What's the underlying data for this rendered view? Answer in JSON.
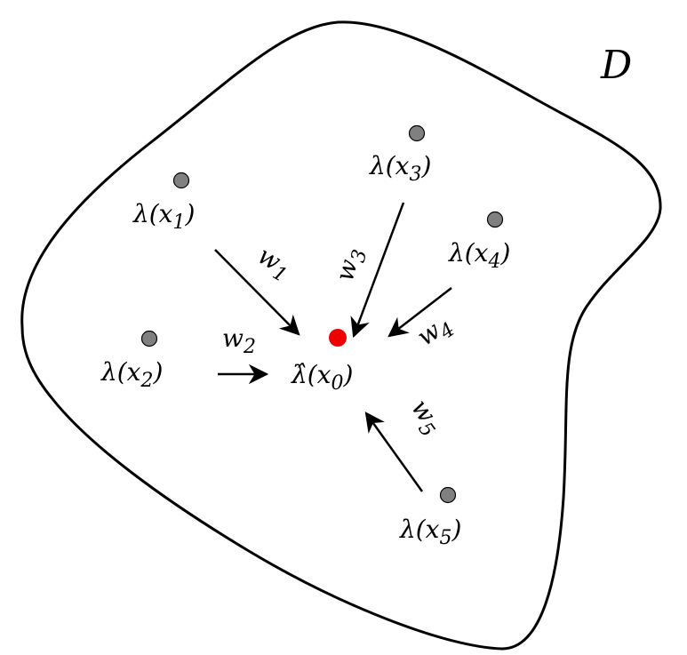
{
  "domain_label": "D",
  "target": {
    "label_base": "λ̂(x",
    "label_sub": "0",
    "label_close": ")",
    "color": "#ee0000"
  },
  "samples": [
    {
      "label_base": "λ(x",
      "label_sub": "1",
      "label_close": ")",
      "weight": "w",
      "weight_sub": "1"
    },
    {
      "label_base": "λ(x",
      "label_sub": "2",
      "label_close": ")",
      "weight": "w",
      "weight_sub": "2"
    },
    {
      "label_base": "λ(x",
      "label_sub": "3",
      "label_close": ")",
      "weight": "w",
      "weight_sub": "3"
    },
    {
      "label_base": "λ(x",
      "label_sub": "4",
      "label_close": ")",
      "weight": "w",
      "weight_sub": "4"
    },
    {
      "label_base": "λ(x",
      "label_sub": "5",
      "label_close": ")",
      "weight": "w",
      "weight_sub": "5"
    }
  ],
  "colors": {
    "sample_point": "#808080",
    "outline": "#000000"
  }
}
